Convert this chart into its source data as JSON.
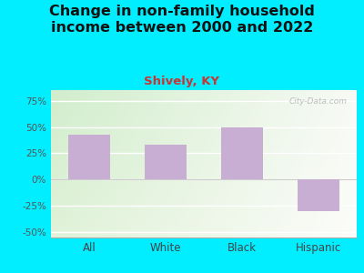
{
  "title": "Change in non-family household\nincome between 2000 and 2022",
  "subtitle": "Shively, KY",
  "categories": [
    "All",
    "White",
    "Black",
    "Hispanic"
  ],
  "values": [
    43,
    33,
    50,
    -30
  ],
  "bar_color": "#c9aed4",
  "title_fontsize": 11.5,
  "subtitle_fontsize": 9.5,
  "subtitle_color": "#cc3333",
  "title_color": "#111111",
  "ylim": [
    -55,
    85
  ],
  "yticks": [
    -50,
    -25,
    0,
    25,
    50,
    75
  ],
  "ytick_labels": [
    "-50%",
    "-25%",
    "0%",
    "25%",
    "50%",
    "75%"
  ],
  "bg_outer": "#00eeff",
  "bg_plot_color1": "#d4edcc",
  "bg_plot_color2": "#f0f7ee",
  "bg_plot_color3": "#fafaf5",
  "watermark": "City-Data.com",
  "bar_width": 0.55
}
